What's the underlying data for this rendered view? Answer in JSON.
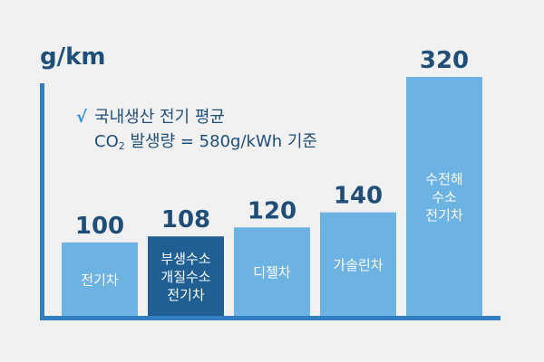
{
  "chart_data": {
    "type": "bar",
    "unit": "g/km",
    "categories": [
      "전기차",
      "부생수소 개질수소 전기차",
      "디젤차",
      "가솔린차",
      "수전해 수소 전기차"
    ],
    "category_lines": [
      [
        "전기차"
      ],
      [
        "부생수소",
        "개질수소",
        "전기차"
      ],
      [
        "디젤차"
      ],
      [
        "가솔린차"
      ],
      [
        "수전해",
        "수소",
        "전기차"
      ]
    ],
    "values": [
      100,
      108,
      120,
      140,
      320
    ],
    "value_labels": [
      "100",
      "108",
      "120",
      "140",
      "320"
    ],
    "colors": [
      "#6cb3e3",
      "#1f5f94",
      "#6cb3e3",
      "#6cb3e3",
      "#6cb3e3"
    ],
    "ylim": [
      0,
      320
    ],
    "grid": false,
    "annotation": {
      "check": "√",
      "line1": "국내생산 전기 평균",
      "line2_co": "CO",
      "line2_sub": "2",
      "line2_rest": " 발생량 = 580g/kWh 기준"
    },
    "axis_color": "#2f7fc1"
  }
}
